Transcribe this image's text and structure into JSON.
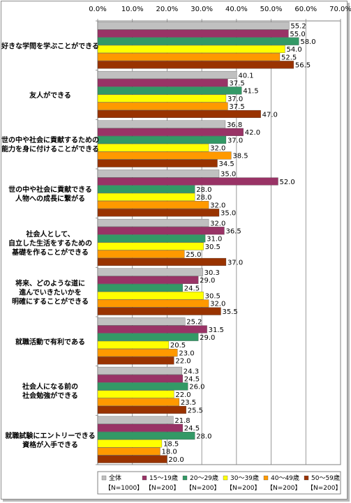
{
  "chart_data": {
    "type": "bar",
    "orientation": "horizontal",
    "title": "",
    "xlim": [
      0,
      70
    ],
    "x_ticks": [
      "0.0%",
      "10.0%",
      "20.0%",
      "30.0%",
      "40.0%",
      "50.0%",
      "60.0%",
      "70.0%"
    ],
    "grid": true,
    "legend_position": "bottom",
    "categories": [
      [
        "好きな学問を学ぶことができる"
      ],
      [
        "友人ができる"
      ],
      [
        "世の中や社会に貢献するための",
        "能力を身に付けることができる"
      ],
      [
        "世の中や社会に貢献できる",
        "人物への成長に繋がる"
      ],
      [
        "社会人として、",
        "自立した生活をするための",
        "基礎を作ることができる"
      ],
      [
        "将来、どのような道に",
        "進んでいきたいかを",
        "明確にすることができる"
      ],
      [
        "就職活動で有利である"
      ],
      [
        "社会人になる前の",
        "社会勉強ができる"
      ],
      [
        "就職試験にエントリーできる",
        "資格が入手できる"
      ]
    ],
    "series": [
      {
        "name": "全体",
        "n": "【N=1000】",
        "color": "#c0c0c0",
        "values": [
          55.2,
          40.1,
          36.8,
          35.0,
          32.0,
          30.3,
          25.2,
          24.3,
          21.8
        ]
      },
      {
        "name": "15～19歳",
        "n": "【N=200】",
        "color": "#993366",
        "values": [
          55.0,
          37.5,
          42.0,
          52.0,
          36.5,
          29.0,
          31.5,
          24.5,
          24.5
        ]
      },
      {
        "name": "20～29歳",
        "n": "【N=200】",
        "color": "#339966",
        "values": [
          58.0,
          41.5,
          37.0,
          28.0,
          31.0,
          24.5,
          29.0,
          26.0,
          28.0
        ]
      },
      {
        "name": "30～39歳",
        "n": "【N=200】",
        "color": "#ffff00",
        "values": [
          54.0,
          37.0,
          32.0,
          28.0,
          30.5,
          30.5,
          20.5,
          22.0,
          18.5
        ]
      },
      {
        "name": "40～49歳",
        "n": "【N=200】",
        "color": "#ff9900",
        "values": [
          52.5,
          37.5,
          38.5,
          32.0,
          25.0,
          32.0,
          23.0,
          23.5,
          18.0
        ]
      },
      {
        "name": "50～59歳",
        "n": "【N=200】",
        "color": "#993300",
        "values": [
          56.5,
          47.0,
          34.5,
          35.0,
          37.0,
          35.5,
          22.0,
          25.5,
          20.0
        ]
      }
    ]
  }
}
